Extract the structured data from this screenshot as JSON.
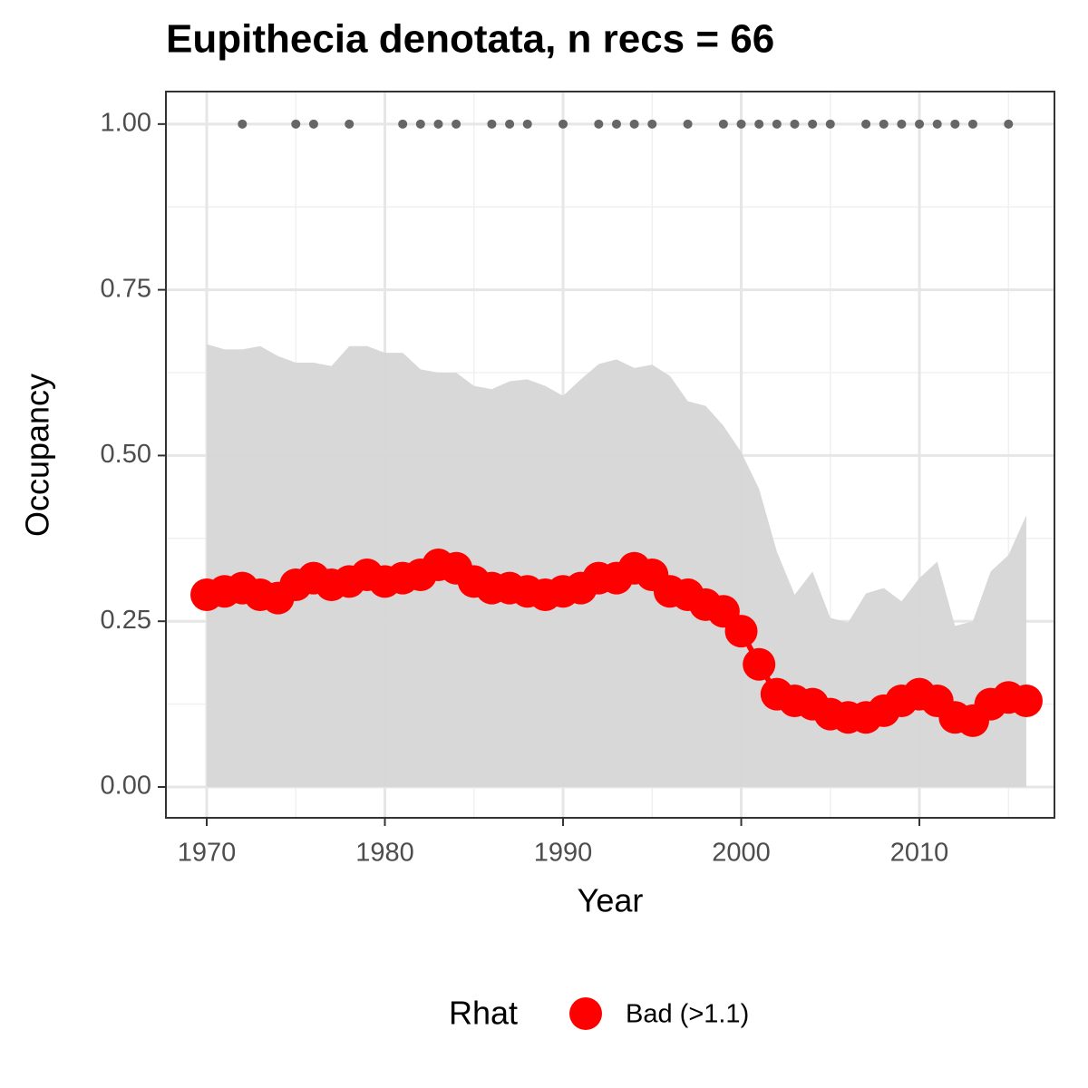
{
  "chart_data": {
    "type": "line",
    "title": "Eupithecia denotata, n recs = 66",
    "x_label": "Year",
    "y_label": "Occupancy",
    "x": [
      1970,
      1971,
      1972,
      1973,
      1974,
      1975,
      1976,
      1977,
      1978,
      1979,
      1980,
      1981,
      1982,
      1983,
      1984,
      1985,
      1986,
      1987,
      1988,
      1989,
      1990,
      1991,
      1992,
      1993,
      1994,
      1995,
      1996,
      1997,
      1998,
      1999,
      2000,
      2001,
      2002,
      2003,
      2004,
      2005,
      2006,
      2007,
      2008,
      2009,
      2010,
      2011,
      2012,
      2013,
      2014,
      2015,
      2016
    ],
    "series": [
      {
        "name": "Bad (>1.1)",
        "color": "#ff0000",
        "values": [
          0.29,
          0.295,
          0.3,
          0.29,
          0.285,
          0.305,
          0.315,
          0.305,
          0.31,
          0.32,
          0.31,
          0.315,
          0.32,
          0.335,
          0.33,
          0.31,
          0.3,
          0.3,
          0.295,
          0.29,
          0.295,
          0.3,
          0.315,
          0.315,
          0.33,
          0.32,
          0.295,
          0.29,
          0.275,
          0.265,
          0.235,
          0.185,
          0.14,
          0.13,
          0.125,
          0.11,
          0.105,
          0.105,
          0.115,
          0.13,
          0.14,
          0.13,
          0.105,
          0.1,
          0.125,
          0.135,
          0.13
        ]
      }
    ],
    "upper": [
      0.668,
      0.66,
      0.66,
      0.665,
      0.65,
      0.64,
      0.64,
      0.635,
      0.665,
      0.665,
      0.655,
      0.655,
      0.63,
      0.625,
      0.625,
      0.605,
      0.6,
      0.612,
      0.615,
      0.605,
      0.59,
      0.615,
      0.638,
      0.645,
      0.632,
      0.637,
      0.62,
      0.582,
      0.575,
      0.545,
      0.505,
      0.45,
      0.355,
      0.29,
      0.325,
      0.255,
      0.248,
      0.292,
      0.3,
      0.28,
      0.315,
      0.34,
      0.243,
      0.25,
      0.325,
      0.35,
      0.41
    ],
    "lower": [
      0,
      0,
      0,
      0,
      0,
      0,
      0,
      0,
      0,
      0,
      0,
      0,
      0,
      0,
      0,
      0,
      0,
      0,
      0,
      0,
      0,
      0,
      0,
      0,
      0,
      0,
      0,
      0,
      0,
      0,
      0,
      0,
      0,
      0,
      0,
      0,
      0,
      0,
      0,
      0,
      0,
      0,
      0,
      0,
      0,
      0,
      0
    ],
    "ribbon_color": "#d6d6d6",
    "record_years": [
      1972,
      1975,
      1976,
      1978,
      1981,
      1982,
      1983,
      1984,
      1986,
      1987,
      1988,
      1990,
      1992,
      1993,
      1994,
      1995,
      1997,
      1999,
      2000,
      2001,
      2002,
      2003,
      2004,
      2005,
      2007,
      2008,
      2009,
      2010,
      2011,
      2012,
      2013,
      2015
    ],
    "record_value": 1,
    "record_color": "#666666",
    "xlim": [
      1967.71,
      2017.58
    ],
    "ylim": [
      -0.0465,
      1.049
    ],
    "xticks": [
      1970,
      1980,
      1990,
      2000,
      2010
    ],
    "x_minor_ticks": [
      1975,
      1985,
      1995,
      2005,
      2015
    ],
    "yticks": [
      {
        "value": 0,
        "label": "0.00"
      },
      {
        "value": 0.25,
        "label": "0.25"
      },
      {
        "value": 0.5,
        "label": "0.50"
      },
      {
        "value": 0.75,
        "label": "0.75"
      },
      {
        "value": 1,
        "label": "1.00"
      }
    ],
    "y_minor_ticks": [
      0.125,
      0.375,
      0.625,
      0.875
    ],
    "grid": true,
    "legend_title": "Rhat",
    "legend_position": "bottom"
  }
}
